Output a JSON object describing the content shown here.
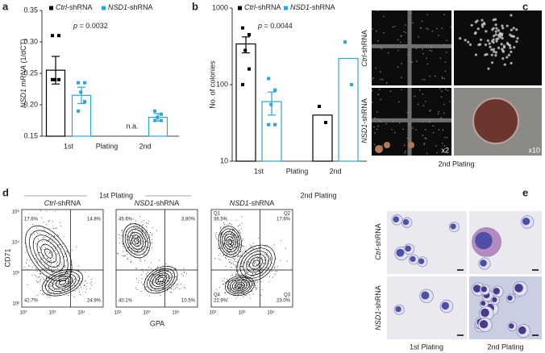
{
  "panel_labels": [
    "a",
    "b",
    "c",
    "d",
    "e"
  ],
  "chart_data": [
    {
      "type": "bar",
      "categories": [
        "1st",
        "2nd"
      ],
      "xlabel": "Plating",
      "ylabel": "NSD1 mRNA (1/dCT)",
      "ylim": [
        0.15,
        0.35
      ],
      "yticks": [
        0.15,
        {
          "value": 0.2,
          "label": "0.20"
        },
        0.25,
        {
          "value": 0.3,
          "label": "0.30"
        },
        0.35
      ],
      "series": [
        {
          "name": "Ctrl-shRNA",
          "color": "#000000",
          "values": [
            0.255,
            null
          ],
          "errors": [
            0.022,
            null
          ],
          "points": [
            [
              0.31,
              0.31,
              0.24,
              0.24,
              0.24
            ],
            []
          ]
        },
        {
          "name": "NSD1-shRNA",
          "color": "#29a8d8",
          "values": [
            0.215,
            0.18
          ],
          "errors": [
            0.013,
            0.006
          ],
          "points": [
            [
              0.235,
              0.235,
              0.22,
              0.205,
              0.19
            ],
            [
              0.19,
              0.185,
              0.18,
              0.175,
              0.175
            ]
          ]
        }
      ],
      "annotations": [
        "p = 0.0032",
        "n.a."
      ]
    },
    {
      "type": "bar",
      "log": true,
      "categories": [
        "1st",
        "2nd"
      ],
      "xlabel": "Plating",
      "ylabel": "No. of colonies",
      "ylim": [
        10,
        1000
      ],
      "yticks": [
        10,
        100,
        1000
      ],
      "series": [
        {
          "name": "Ctrl-shRNA",
          "color": "#000000",
          "values": [
            340,
            40
          ],
          "errors": [
            80,
            null
          ],
          "points": [
            [
              550,
              450,
              280,
              160,
              100
            ],
            [
              52,
              32
            ]
          ]
        },
        {
          "name": "NSD1-shRNA",
          "color": "#29a8d8",
          "values": [
            60,
            220
          ],
          "errors": [
            20,
            null
          ],
          "points": [
            [
              120,
              85,
              55,
              30,
              30
            ],
            [
              360,
              100
            ]
          ]
        }
      ],
      "annotations": [
        "p = 0.0044"
      ]
    }
  ],
  "panel_c": {
    "row_labels": [
      "Ctrl-shRNA",
      "NSD1-shRNA"
    ],
    "magnifications": [
      "x2",
      "x10"
    ],
    "caption": "2nd Plating"
  },
  "panel_d": {
    "header_left": "1st Plating",
    "header_right": "2nd Plating",
    "ylabel": "CD71",
    "xlabel": "GPA",
    "yticks": [
      "10⁵",
      "10⁴",
      "10³",
      "10²"
    ],
    "xticks": [
      "10²",
      "10³",
      "10⁴"
    ],
    "plots": [
      {
        "title": "Ctrl-shRNA",
        "quadrants": [
          "17.6%",
          "14.8%",
          "42.7%",
          "24.9%"
        ]
      },
      {
        "title": "NSD1-shRNA",
        "quadrants": [
          "45.6%",
          "3.80%",
          "40.1%",
          "10.5%"
        ]
      },
      {
        "title": "NSD1-shRNA",
        "gates": [
          "Q1",
          "Q2",
          "Q4",
          "Q3"
        ],
        "quadrants": [
          "36.5%",
          "17.6%",
          "22.9%",
          "23.0%"
        ]
      }
    ]
  },
  "panel_e": {
    "row_labels": [
      "Ctrl-shRNA",
      "NSD1-shRNA"
    ],
    "column_labels": [
      "1st Plating",
      "2nd Plating"
    ]
  }
}
